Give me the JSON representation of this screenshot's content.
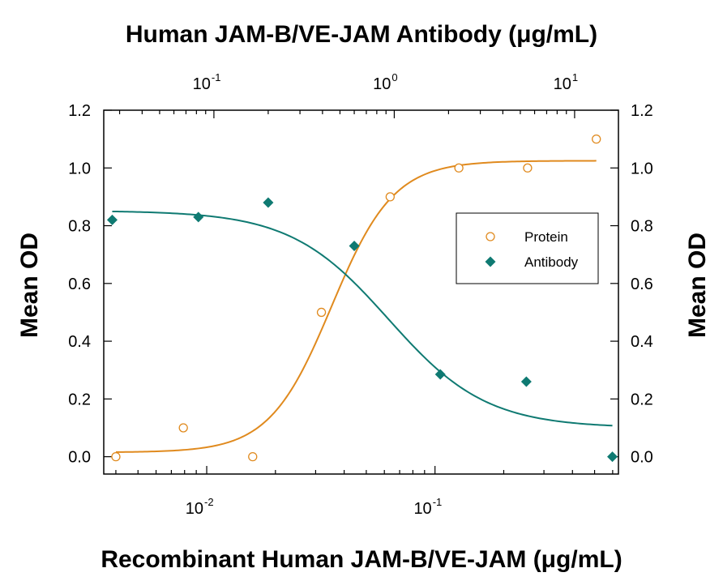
{
  "chart_data": {
    "type": "scatter",
    "top_axis": {
      "title": "Human JAM-B/VE-JAM Antibody (μg/mL)",
      "scale": "log",
      "range": [
        0.0245,
        17.5
      ],
      "ticks": [
        {
          "value": 0.1,
          "base": "10",
          "exp": "-1"
        },
        {
          "value": 1,
          "base": "10",
          "exp": "0"
        },
        {
          "value": 10,
          "base": "10",
          "exp": "1"
        }
      ]
    },
    "bottom_axis": {
      "title": "Recombinant Human JAM-B/VE-JAM (μg/mL)",
      "scale": "log",
      "range": [
        0.00354,
        0.636
      ],
      "ticks": [
        {
          "value": 0.01,
          "base": "10",
          "exp": "-2"
        },
        {
          "value": 0.1,
          "base": "10",
          "exp": "-1"
        }
      ]
    },
    "left_axis": {
      "title": "Mean OD",
      "range": [
        -0.06,
        1.2
      ],
      "ticks": [
        {
          "value": 0.0,
          "label": "0.0"
        },
        {
          "value": 0.2,
          "label": "0.2"
        },
        {
          "value": 0.4,
          "label": "0.4"
        },
        {
          "value": 0.6,
          "label": "0.6"
        },
        {
          "value": 0.8,
          "label": "0.8"
        },
        {
          "value": 1.0,
          "label": "1.0"
        },
        {
          "value": 1.2,
          "label": "1.2"
        }
      ]
    },
    "right_axis": {
      "title": "Mean OD",
      "ticks": [
        "0.0",
        "0.2",
        "0.4",
        "0.6",
        "0.8",
        "1.0",
        "1.2"
      ]
    },
    "legend_position": "center-right",
    "series": [
      {
        "name": "Protein",
        "axis": "bottom",
        "marker": "open-circle",
        "color": "#e08a1e",
        "x": [
          0.004,
          0.0079,
          0.0159,
          0.0318,
          0.0636,
          0.1272,
          0.2544,
          0.5088
        ],
        "y": [
          0.0,
          0.1,
          0.0,
          0.5,
          0.9,
          1.0,
          1.0,
          1.1
        ],
        "fit": {
          "bottom": 0.015,
          "top": 1.025,
          "ec50": 0.0352,
          "hill": 3.2
        }
      },
      {
        "name": "Antibody",
        "axis": "top",
        "marker": "filled-diamond",
        "color": "#0f7a72",
        "x": [
          0.0273,
          0.082,
          0.2,
          0.6,
          1.8,
          5.4,
          16.2
        ],
        "y": [
          0.82,
          0.83,
          0.88,
          0.73,
          0.285,
          0.26,
          0.0
        ],
        "fit": {
          "bottom": 0.1,
          "top": 0.852,
          "ec50": 0.93,
          "hill": -1.6
        }
      }
    ]
  }
}
